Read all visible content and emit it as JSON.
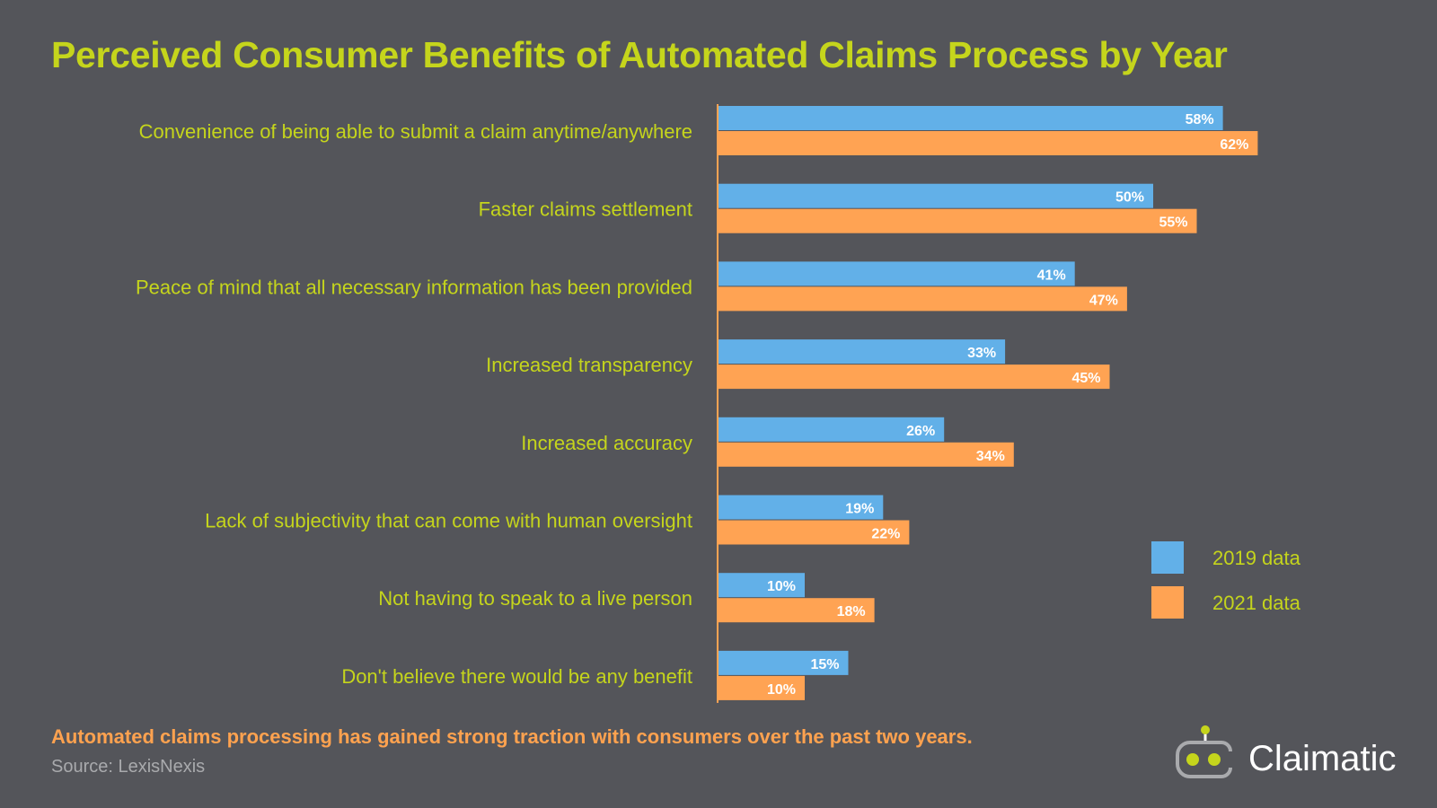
{
  "chart_data": {
    "type": "bar",
    "orientation": "horizontal",
    "title": "Perceived Consumer Benefits of Automated Claims Process by Year",
    "categories": [
      "Convenience of being able to submit a claim anytime/anywhere",
      "Faster claims settlement",
      "Peace of mind that all necessary information has been provided",
      "Increased transparency",
      "Increased accuracy",
      "Lack of subjectivity that can come with human oversight",
      "Not having to speak to a live person",
      "Don't believe there would be any benefit"
    ],
    "series": [
      {
        "name": "2019 data",
        "color": "#62b0e8",
        "values": [
          58,
          50,
          41,
          33,
          26,
          19,
          10,
          15
        ]
      },
      {
        "name": "2021 data",
        "color": "#ffa353",
        "values": [
          62,
          55,
          47,
          45,
          34,
          22,
          18,
          10
        ]
      }
    ],
    "value_suffix": "%",
    "xlim": [
      0,
      100
    ],
    "legend_position": "right",
    "grid": false,
    "xlabel": "",
    "ylabel": ""
  },
  "footnote": "Automated claims processing has gained strong traction with consumers over the past two years.",
  "source": "Source: LexisNexis",
  "logo": {
    "text": "Claimatic"
  },
  "colors": {
    "background": "#54555a",
    "title": "#c5d51c",
    "label": "#c5d51c",
    "footnote": "#ffa24f"
  }
}
